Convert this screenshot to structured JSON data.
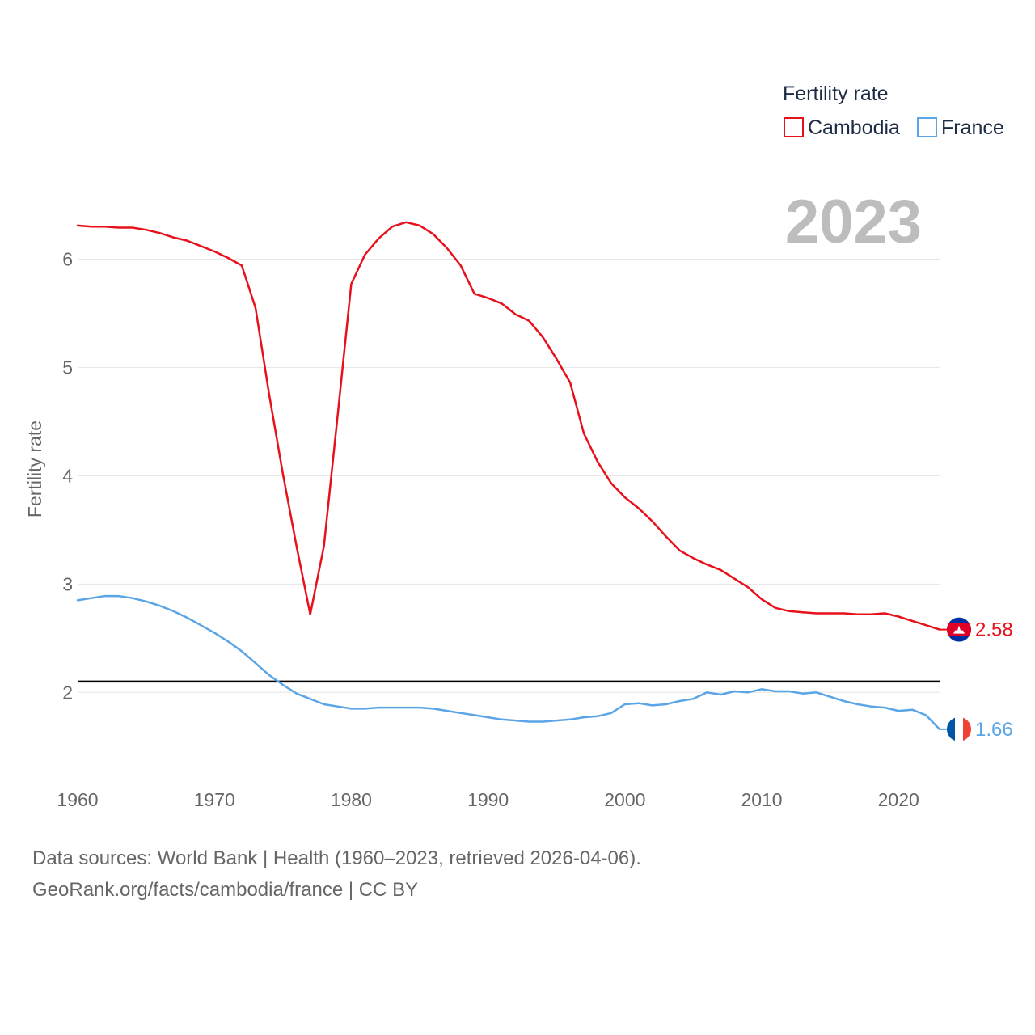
{
  "chart_data": {
    "type": "line",
    "legend_title": "Fertility rate",
    "ylabel": "Fertility rate",
    "xlabel": "",
    "year_display": "2023",
    "xlim": [
      1960,
      2023
    ],
    "ylim": [
      1.45,
      6.6
    ],
    "x_ticks": [
      "1960",
      "1970",
      "1980",
      "1990",
      "2000",
      "2010",
      "2020"
    ],
    "y_ticks": [
      "2",
      "3",
      "4",
      "5",
      "6"
    ],
    "reference_line": 2.1,
    "legend_position": "top-right",
    "series": [
      {
        "name": "Cambodia",
        "color": "#e8111b",
        "flag": "cambodia-flag",
        "end_label": "2.58",
        "x": [
          1960,
          1961,
          1962,
          1963,
          1964,
          1965,
          1966,
          1967,
          1968,
          1969,
          1970,
          1971,
          1972,
          1973,
          1974,
          1975,
          1976,
          1977,
          1978,
          1979,
          1980,
          1981,
          1982,
          1983,
          1984,
          1985,
          1986,
          1987,
          1988,
          1989,
          1990,
          1991,
          1992,
          1993,
          1994,
          1995,
          1996,
          1997,
          1998,
          1999,
          2000,
          2001,
          2002,
          2003,
          2004,
          2005,
          2006,
          2007,
          2008,
          2009,
          2010,
          2011,
          2012,
          2013,
          2014,
          2015,
          2016,
          2017,
          2018,
          2019,
          2020,
          2021,
          2022,
          2023
        ],
        "values": [
          6.31,
          6.3,
          6.3,
          6.29,
          6.29,
          6.27,
          6.24,
          6.2,
          6.17,
          6.12,
          6.07,
          6.01,
          5.94,
          5.55,
          4.75,
          4.02,
          3.35,
          2.72,
          3.35,
          4.55,
          5.77,
          6.04,
          6.19,
          6.3,
          6.34,
          6.31,
          6.23,
          6.1,
          5.94,
          5.68,
          5.64,
          5.59,
          5.49,
          5.43,
          5.28,
          5.08,
          4.86,
          4.39,
          4.13,
          3.93,
          3.8,
          3.7,
          3.58,
          3.44,
          3.31,
          3.24,
          3.18,
          3.13,
          3.05,
          2.97,
          2.86,
          2.78,
          2.75,
          2.74,
          2.73,
          2.73,
          2.73,
          2.72,
          2.72,
          2.73,
          2.7,
          2.66,
          2.62,
          2.58
        ]
      },
      {
        "name": "France",
        "color": "#5aa5e6",
        "flag": "france-flag",
        "end_label": "1.66",
        "x": [
          1960,
          1961,
          1962,
          1963,
          1964,
          1965,
          1966,
          1967,
          1968,
          1969,
          1970,
          1971,
          1972,
          1973,
          1974,
          1975,
          1976,
          1977,
          1978,
          1979,
          1980,
          1981,
          1982,
          1983,
          1984,
          1985,
          1986,
          1987,
          1988,
          1989,
          1990,
          1991,
          1992,
          1993,
          1994,
          1995,
          1996,
          1997,
          1998,
          1999,
          2000,
          2001,
          2002,
          2003,
          2004,
          2005,
          2006,
          2007,
          2008,
          2009,
          2010,
          2011,
          2012,
          2013,
          2014,
          2015,
          2016,
          2017,
          2018,
          2019,
          2020,
          2021,
          2022,
          2023
        ],
        "values": [
          2.85,
          2.87,
          2.89,
          2.89,
          2.87,
          2.84,
          2.8,
          2.75,
          2.69,
          2.62,
          2.55,
          2.47,
          2.38,
          2.27,
          2.16,
          2.07,
          1.99,
          1.94,
          1.89,
          1.87,
          1.85,
          1.85,
          1.86,
          1.86,
          1.86,
          1.86,
          1.85,
          1.83,
          1.81,
          1.79,
          1.77,
          1.75,
          1.74,
          1.73,
          1.73,
          1.74,
          1.75,
          1.77,
          1.78,
          1.81,
          1.89,
          1.9,
          1.88,
          1.89,
          1.92,
          1.94,
          2.0,
          1.98,
          2.01,
          2.0,
          2.03,
          2.01,
          2.01,
          1.99,
          2.0,
          1.96,
          1.92,
          1.89,
          1.87,
          1.86,
          1.83,
          1.84,
          1.79,
          1.66
        ]
      }
    ]
  },
  "footer": {
    "sources": "Data sources: World Bank | Health (1960–2023, retrieved 2026-04-06).",
    "credit": "GeoRank.org/facts/cambodia/france | CC BY"
  }
}
